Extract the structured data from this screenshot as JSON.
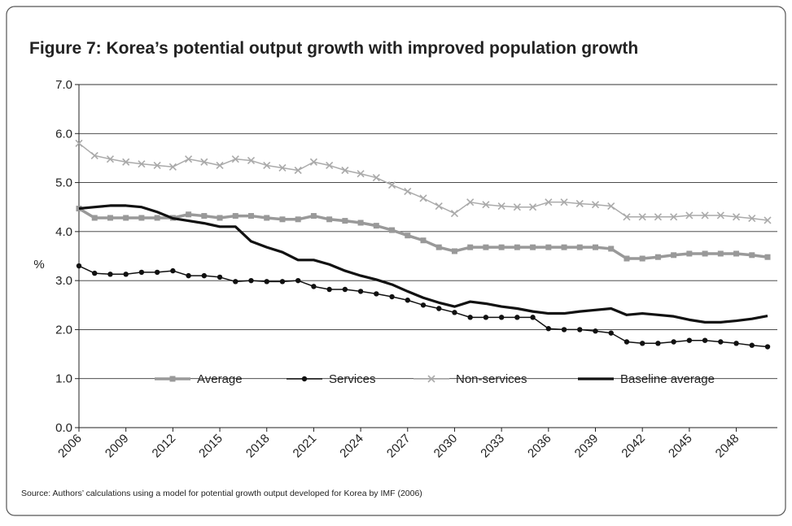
{
  "chart_data": {
    "type": "line",
    "title": "Figure 7: Korea’s potential output growth with improved population growth",
    "y_label": "%",
    "source": "Source: Authors’ calculations using a model for potential growth output developed for Korea by IMF (2006)",
    "x": [
      2006,
      2007,
      2008,
      2009,
      2010,
      2011,
      2012,
      2013,
      2014,
      2015,
      2016,
      2017,
      2018,
      2019,
      2020,
      2021,
      2022,
      2023,
      2024,
      2025,
      2026,
      2027,
      2028,
      2029,
      2030,
      2031,
      2032,
      2033,
      2034,
      2035,
      2036,
      2037,
      2038,
      2039,
      2040,
      2041,
      2042,
      2043,
      2044,
      2045,
      2046,
      2047,
      2048,
      2049,
      2050
    ],
    "xlim": [
      2006,
      2050
    ],
    "xticks": [
      2006,
      2009,
      2012,
      2015,
      2018,
      2021,
      2024,
      2027,
      2030,
      2033,
      2036,
      2039,
      2042,
      2045,
      2048
    ],
    "ylim": [
      0,
      7
    ],
    "yticks": [
      {
        "value": 0,
        "label": "0.0"
      },
      {
        "value": 1,
        "label": "1.0"
      },
      {
        "value": 2,
        "label": "2.0"
      },
      {
        "value": 3,
        "label": "3.0"
      },
      {
        "value": 4,
        "label": "4.0"
      },
      {
        "value": 5,
        "label": "5.0"
      },
      {
        "value": 6,
        "label": "6.0"
      },
      {
        "value": 7,
        "label": "7.0"
      }
    ],
    "grid": true,
    "legend_position": "bottom",
    "series": [
      {
        "name": "Average",
        "color": "#999999",
        "marker": "square",
        "values": [
          4.47,
          4.28,
          4.28,
          4.28,
          4.28,
          4.28,
          4.28,
          4.35,
          4.32,
          4.28,
          4.32,
          4.32,
          4.28,
          4.25,
          4.25,
          4.32,
          4.25,
          4.22,
          4.18,
          4.12,
          4.03,
          3.92,
          3.82,
          3.68,
          3.6,
          3.68,
          3.68,
          3.68,
          3.68,
          3.68,
          3.68,
          3.68,
          3.68,
          3.68,
          3.65,
          3.45,
          3.45,
          3.48,
          3.52,
          3.55,
          3.55,
          3.55,
          3.55,
          3.52,
          3.48
        ]
      },
      {
        "name": "Services",
        "color": "#111111",
        "marker": "circle",
        "values": [
          3.3,
          3.15,
          3.13,
          3.13,
          3.17,
          3.17,
          3.2,
          3.1,
          3.1,
          3.07,
          2.98,
          3.0,
          2.98,
          2.98,
          3.0,
          2.88,
          2.82,
          2.82,
          2.78,
          2.73,
          2.67,
          2.6,
          2.5,
          2.43,
          2.35,
          2.25,
          2.25,
          2.25,
          2.25,
          2.25,
          2.02,
          2.0,
          2.0,
          1.97,
          1.93,
          1.75,
          1.72,
          1.72,
          1.75,
          1.78,
          1.78,
          1.75,
          1.72,
          1.68,
          1.65
        ]
      },
      {
        "name": "Non-services",
        "color": "#aaaaaa",
        "marker": "x",
        "values": [
          5.8,
          5.55,
          5.48,
          5.42,
          5.38,
          5.35,
          5.32,
          5.48,
          5.42,
          5.35,
          5.48,
          5.45,
          5.35,
          5.3,
          5.25,
          5.42,
          5.35,
          5.25,
          5.18,
          5.1,
          4.95,
          4.82,
          4.68,
          4.52,
          4.37,
          4.6,
          4.55,
          4.52,
          4.5,
          4.5,
          4.6,
          4.6,
          4.57,
          4.55,
          4.52,
          4.3,
          4.3,
          4.3,
          4.3,
          4.33,
          4.33,
          4.33,
          4.3,
          4.27,
          4.23
        ]
      },
      {
        "name": "Baseline average",
        "color": "#111111",
        "marker": "none",
        "values": [
          4.47,
          4.5,
          4.53,
          4.53,
          4.5,
          4.4,
          4.27,
          4.22,
          4.17,
          4.1,
          4.1,
          3.8,
          3.68,
          3.58,
          3.42,
          3.42,
          3.33,
          3.2,
          3.1,
          3.02,
          2.92,
          2.78,
          2.65,
          2.55,
          2.47,
          2.57,
          2.53,
          2.47,
          2.43,
          2.37,
          2.33,
          2.33,
          2.37,
          2.4,
          2.43,
          2.3,
          2.33,
          2.3,
          2.27,
          2.2,
          2.15,
          2.15,
          2.18,
          2.22,
          2.28
        ]
      }
    ]
  }
}
